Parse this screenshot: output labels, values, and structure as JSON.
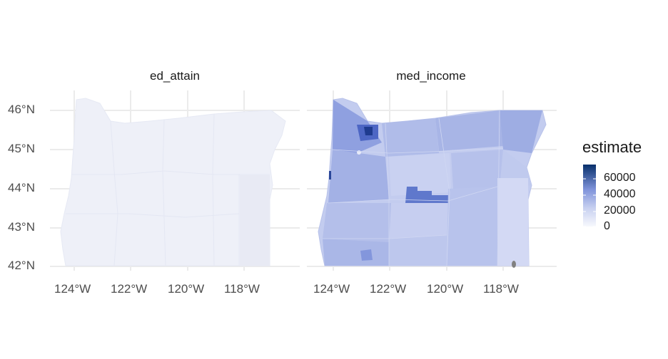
{
  "facets": [
    {
      "id": "ed_attain",
      "label": "ed_attain"
    },
    {
      "id": "med_income",
      "label": "med_income"
    }
  ],
  "axes": {
    "lat_labels": [
      "46°N",
      "45°N",
      "44°N",
      "43°N",
      "42°N"
    ],
    "lat_values": [
      46,
      45,
      44,
      43,
      42
    ],
    "lon_labels": [
      "124°W",
      "122°W",
      "120°W",
      "118°W"
    ],
    "lon_values": [
      -124,
      -122,
      -120,
      -118
    ]
  },
  "legend": {
    "title": "estimate",
    "labels": [
      "60000",
      "40000",
      "20000",
      "0"
    ],
    "values": [
      60000,
      40000,
      20000,
      0
    ],
    "range": [
      0,
      70000
    ],
    "low_color": "#f7f8fd",
    "high_color": "#08306b"
  },
  "colors": {
    "grid": "#ebebeb",
    "ed_attain_fill": "#eef0f8",
    "med_income_fill": "#c3ccef",
    "na_fill": "#808080"
  }
}
